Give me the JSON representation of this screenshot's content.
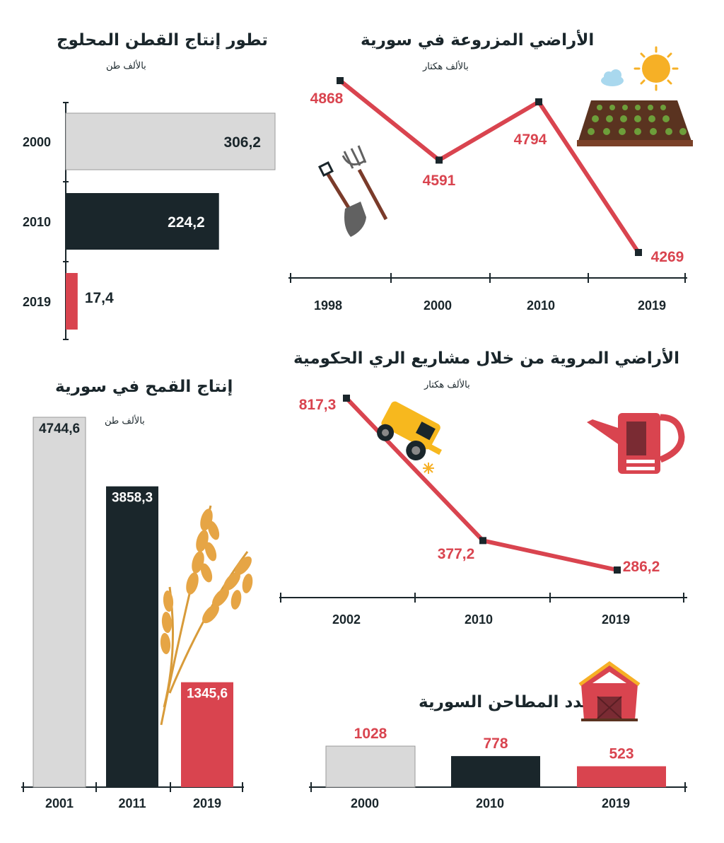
{
  "colors": {
    "gray": "#d9d9d9",
    "dark": "#1a262b",
    "red": "#d9444f",
    "line": "#d9444f"
  },
  "cotton": {
    "title": "تطور إنتاج القطن المحلوج",
    "unit": "بالألف طن"
  },
  "lands": {
    "title": "الأراضي المزروعة في سورية",
    "unit": "بالألف هكتار"
  },
  "irrigated": {
    "title": "الأراضي المروية من خلال مشاريع الري الحكومية",
    "unit": "بالألف هكتار"
  },
  "wheat": {
    "title": "إنتاج القمح في سورية",
    "unit": "بالألف طن"
  },
  "mills": {
    "title": "عدد المطاحن السورية"
  },
  "chart_data": [
    {
      "type": "bar",
      "orientation": "horizontal",
      "title": "تطور إنتاج القطن المحلوج",
      "ylabel": "بالألف طن",
      "categories": [
        "2000",
        "2010",
        "2019"
      ],
      "values": [
        306.2,
        224.2,
        17.4
      ],
      "value_labels": [
        "306,2",
        "224,2",
        "17,4"
      ],
      "colors": [
        "#d9d9d9",
        "#1a262b",
        "#d9444f"
      ]
    },
    {
      "type": "line",
      "title": "الأراضي المزروعة في سورية",
      "ylabel": "بالألف هكتار",
      "x": [
        "1998",
        "2000",
        "2010",
        "2019"
      ],
      "values": [
        4868,
        4591,
        4794,
        4269
      ],
      "value_labels": [
        "4868",
        "4591",
        "4794",
        "4269"
      ]
    },
    {
      "type": "line",
      "title": "الأراضي المروية من خلال مشاريع الري الحكومية",
      "ylabel": "بالألف هكتار",
      "x": [
        "2002",
        "2010",
        "2019"
      ],
      "values": [
        817.3,
        377.2,
        286.2
      ],
      "value_labels": [
        "817,3",
        "377,2",
        "286,2"
      ]
    },
    {
      "type": "bar",
      "title": "إنتاج القمح في سورية",
      "ylabel": "بالألف طن",
      "categories": [
        "2001",
        "2011",
        "2019"
      ],
      "values": [
        4744.6,
        3858.3,
        1345.6
      ],
      "value_labels": [
        "4744,6",
        "3858,3",
        "1345,6"
      ],
      "colors": [
        "#d9d9d9",
        "#1a262b",
        "#d9444f"
      ]
    },
    {
      "type": "bar",
      "title": "عدد المطاحن السورية",
      "categories": [
        "2000",
        "2010",
        "2019"
      ],
      "values": [
        1028,
        778,
        523
      ],
      "value_labels": [
        "1028",
        "778",
        "523"
      ],
      "colors": [
        "#d9d9d9",
        "#1a262b",
        "#d9444f"
      ]
    }
  ]
}
